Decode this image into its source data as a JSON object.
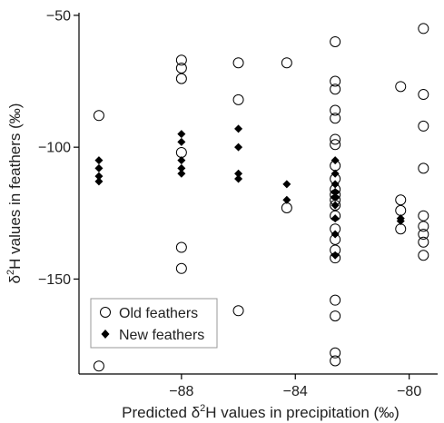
{
  "chart_data": {
    "type": "scatter",
    "xlabel_prefix": "Predicted δ",
    "xlabel_sup": "2",
    "xlabel_suffix": "H values in precipitation (‰)",
    "ylabel_prefix": "δ",
    "ylabel_sup": "2",
    "ylabel_suffix": "H values in feathers (‰)",
    "xlim": [
      -91.6,
      -79.0
    ],
    "ylim": [
      -186,
      -49
    ],
    "xticks": [
      -88,
      -84,
      -80
    ],
    "yticks": [
      -50,
      -100,
      -150
    ],
    "legend_position": "bottom-left",
    "series": [
      {
        "name": "Old feathers",
        "marker": "open-circle",
        "color": "#000000",
        "points": [
          {
            "x": -90.9,
            "y": -88
          },
          {
            "x": -90.9,
            "y": -183
          },
          {
            "x": -88,
            "y": -67
          },
          {
            "x": -88,
            "y": -70
          },
          {
            "x": -88,
            "y": -74
          },
          {
            "x": -88,
            "y": -102
          },
          {
            "x": -88,
            "y": -138
          },
          {
            "x": -88,
            "y": -146
          },
          {
            "x": -86,
            "y": -68
          },
          {
            "x": -86,
            "y": -82
          },
          {
            "x": -86,
            "y": -162
          },
          {
            "x": -84.3,
            "y": -68
          },
          {
            "x": -84.3,
            "y": -123
          },
          {
            "x": -82.6,
            "y": -60
          },
          {
            "x": -82.6,
            "y": -75
          },
          {
            "x": -82.6,
            "y": -78
          },
          {
            "x": -82.6,
            "y": -86
          },
          {
            "x": -82.6,
            "y": -89
          },
          {
            "x": -82.6,
            "y": -97
          },
          {
            "x": -82.6,
            "y": -99
          },
          {
            "x": -82.6,
            "y": -107
          },
          {
            "x": -82.6,
            "y": -112
          },
          {
            "x": -82.6,
            "y": -116
          },
          {
            "x": -82.6,
            "y": -118
          },
          {
            "x": -82.6,
            "y": -120
          },
          {
            "x": -82.6,
            "y": -122
          },
          {
            "x": -82.6,
            "y": -126
          },
          {
            "x": -82.6,
            "y": -131
          },
          {
            "x": -82.6,
            "y": -135
          },
          {
            "x": -82.6,
            "y": -139
          },
          {
            "x": -82.6,
            "y": -142
          },
          {
            "x": -82.6,
            "y": -158
          },
          {
            "x": -82.6,
            "y": -164
          },
          {
            "x": -82.6,
            "y": -178
          },
          {
            "x": -82.6,
            "y": -181
          },
          {
            "x": -80.3,
            "y": -77
          },
          {
            "x": -80.3,
            "y": -120
          },
          {
            "x": -80.3,
            "y": -124
          },
          {
            "x": -80.3,
            "y": -131
          },
          {
            "x": -79.5,
            "y": -55
          },
          {
            "x": -79.5,
            "y": -80
          },
          {
            "x": -79.5,
            "y": -92
          },
          {
            "x": -79.5,
            "y": -108
          },
          {
            "x": -79.5,
            "y": -126
          },
          {
            "x": -79.5,
            "y": -130
          },
          {
            "x": -79.5,
            "y": -133
          },
          {
            "x": -79.5,
            "y": -136
          },
          {
            "x": -79.5,
            "y": -141
          }
        ]
      },
      {
        "name": "New feathers",
        "marker": "filled-diamond",
        "color": "#000000",
        "points": [
          {
            "x": -90.9,
            "y": -105
          },
          {
            "x": -90.9,
            "y": -108
          },
          {
            "x": -90.9,
            "y": -111
          },
          {
            "x": -90.9,
            "y": -113
          },
          {
            "x": -88,
            "y": -95
          },
          {
            "x": -88,
            "y": -98
          },
          {
            "x": -88,
            "y": -105
          },
          {
            "x": -88,
            "y": -108
          },
          {
            "x": -88,
            "y": -110
          },
          {
            "x": -86,
            "y": -93
          },
          {
            "x": -86,
            "y": -100
          },
          {
            "x": -86,
            "y": -110
          },
          {
            "x": -86,
            "y": -112
          },
          {
            "x": -84.3,
            "y": -114
          },
          {
            "x": -84.3,
            "y": -120
          },
          {
            "x": -82.6,
            "y": -105
          },
          {
            "x": -82.6,
            "y": -110
          },
          {
            "x": -82.6,
            "y": -114
          },
          {
            "x": -82.6,
            "y": -117
          },
          {
            "x": -82.6,
            "y": -119
          },
          {
            "x": -82.6,
            "y": -122
          },
          {
            "x": -82.6,
            "y": -127
          },
          {
            "x": -82.6,
            "y": -133
          },
          {
            "x": -82.6,
            "y": -141
          },
          {
            "x": -80.3,
            "y": -127
          },
          {
            "x": -80.3,
            "y": -128
          }
        ]
      }
    ]
  }
}
